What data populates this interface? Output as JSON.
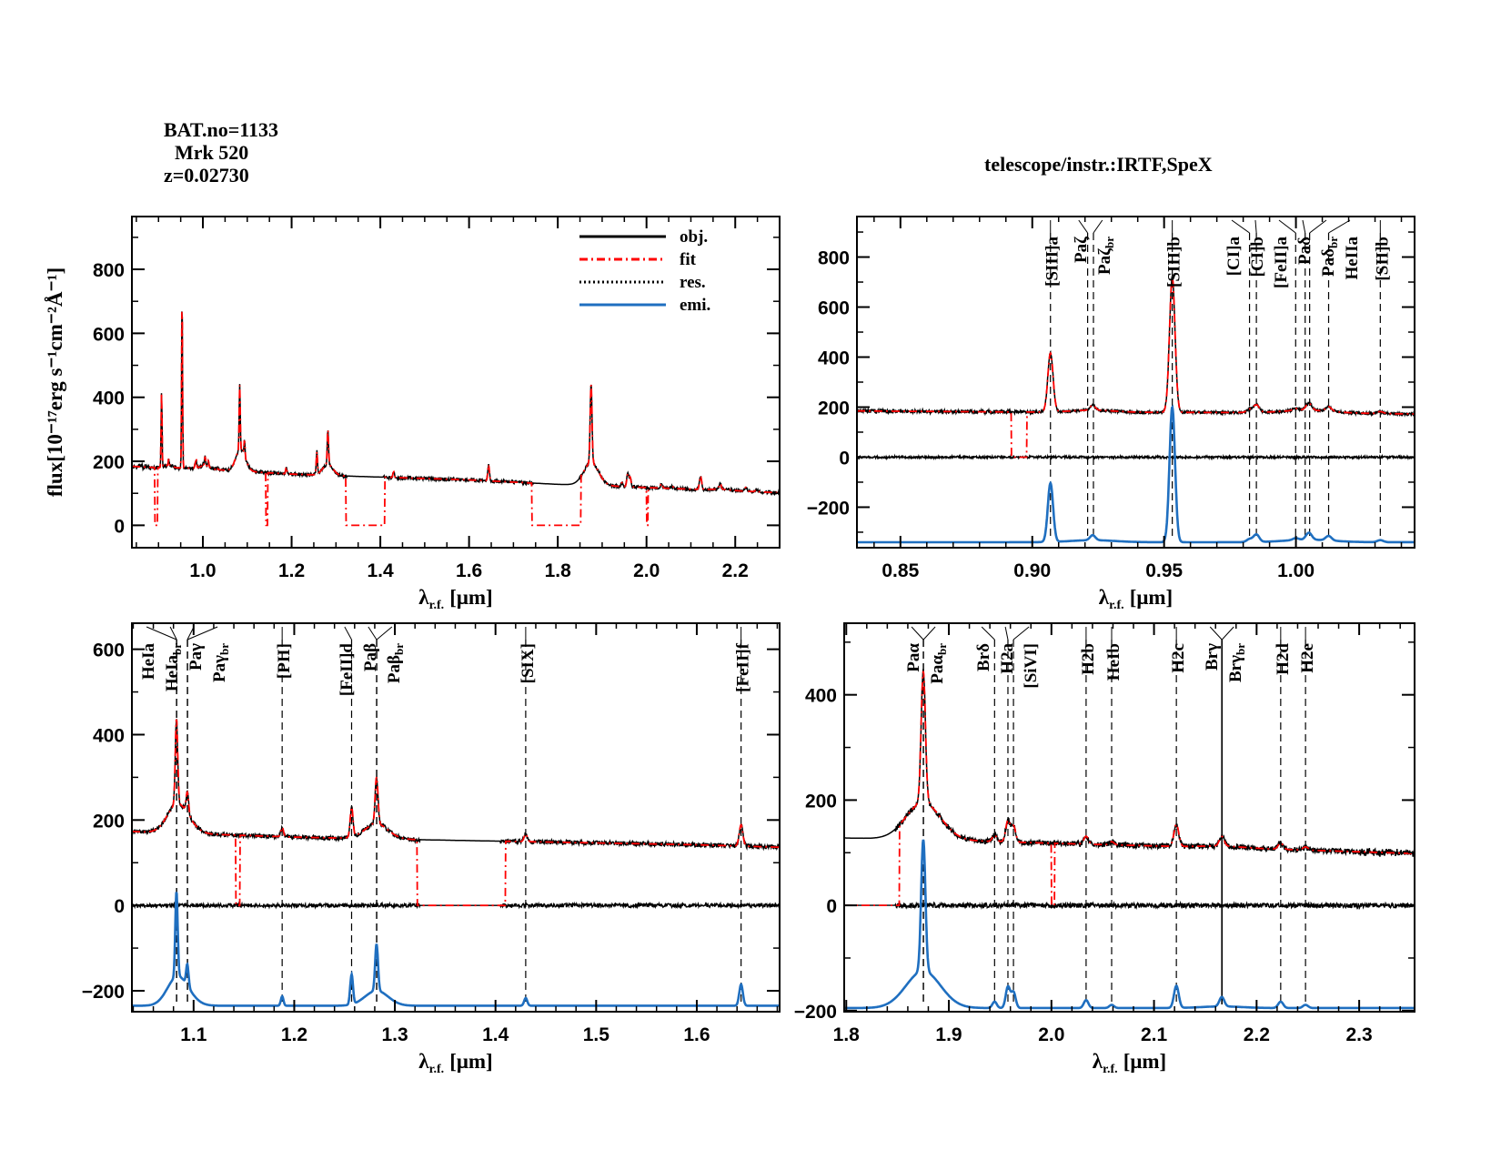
{
  "header": {
    "bat_no": "BAT.no=1133",
    "object": "Mrk 520",
    "redshift": "z=0.02730",
    "instrument": "telescope/instr.:IRTF,SpeX"
  },
  "chart_data": {
    "type": "line",
    "ylabel": "flux[10⁻¹⁷erg s⁻¹cm⁻²Å⁻¹]",
    "xlabel_main": "λ",
    "xlabel_sub": "r.f.",
    "xlabel_unit": "[μm]",
    "legend": {
      "position": "top-right",
      "entries": [
        {
          "name": "obj.",
          "color": "#000000",
          "style": "solid"
        },
        {
          "name": "fit",
          "color": "#ff0000",
          "style": "dash-dot"
        },
        {
          "name": "res.",
          "color": "#000000",
          "style": "dotted"
        },
        {
          "name": "emi.",
          "color": "#1f6fc0",
          "style": "solid"
        }
      ]
    },
    "colors": {
      "obj": "#000000",
      "fit": "#ff0000",
      "res": "#000000",
      "emi": "#1f6fc0"
    },
    "continuum": [
      [
        0.83,
        185
      ],
      [
        0.9,
        180
      ],
      [
        1.0,
        178
      ],
      [
        1.05,
        172
      ],
      [
        1.2,
        160
      ],
      [
        1.3,
        155
      ],
      [
        1.6,
        142
      ],
      [
        1.8,
        128
      ],
      [
        1.9,
        124
      ],
      [
        2.0,
        118
      ],
      [
        2.2,
        108
      ],
      [
        2.36,
        98
      ]
    ],
    "fit_masks": [
      [
        0.892,
        0.898
      ],
      [
        1.142,
        1.146
      ],
      [
        1.322,
        1.41
      ],
      [
        1.742,
        1.852
      ],
      [
        2.0,
        2.003
      ]
    ],
    "emission_lines": [
      {
        "name": "[SIII]a",
        "wl": 0.9069,
        "amp": 235,
        "broad": 0
      },
      {
        "name": "Paζ",
        "wl": 0.9229,
        "amp": 20,
        "broad": 8
      },
      {
        "name": "[SIII]b",
        "wl": 0.9531,
        "amp": 540,
        "broad": 0
      },
      {
        "name": "[CI]a",
        "wl": 0.9824,
        "amp": 12,
        "broad": 0
      },
      {
        "name": "[CI]b",
        "wl": 0.985,
        "amp": 30,
        "broad": 0
      },
      {
        "name": "[FeII]a",
        "wl": 0.9999,
        "amp": 8,
        "broad": 0
      },
      {
        "name": "Paδ",
        "wl": 1.0049,
        "amp": 28,
        "broad": 10
      },
      {
        "name": "HeIIa",
        "wl": 1.0124,
        "amp": 18,
        "broad": 0
      },
      {
        "name": "[SII]b",
        "wl": 1.032,
        "amp": 8,
        "broad": 0
      },
      {
        "name": "HeIa",
        "wl": 1.083,
        "amp": 200,
        "broad": 60
      },
      {
        "name": "Paγ",
        "wl": 1.0938,
        "amp": 50,
        "broad": 15
      },
      {
        "name": "[PII]",
        "wl": 1.188,
        "amp": 22,
        "broad": 0
      },
      {
        "name": "[FeII]d",
        "wl": 1.257,
        "amp": 70,
        "broad": 0
      },
      {
        "name": "Paβ",
        "wl": 1.2818,
        "amp": 110,
        "broad": 35
      },
      {
        "name": "[SIX]",
        "wl": 1.43,
        "amp": 18,
        "broad": 0
      },
      {
        "name": "[FeII]f",
        "wl": 1.644,
        "amp": 50,
        "broad": 0
      },
      {
        "name": "Paα",
        "wl": 1.8751,
        "amp": 250,
        "broad": 70
      },
      {
        "name": "Brδ",
        "wl": 1.9446,
        "amp": 12,
        "broad": 0
      },
      {
        "name": "H2a",
        "wl": 1.9576,
        "amp": 40,
        "broad": 0
      },
      {
        "name": "[SiVI]",
        "wl": 1.963,
        "amp": 30,
        "broad": 0
      },
      {
        "name": "H2b",
        "wl": 2.0338,
        "amp": 15,
        "broad": 0
      },
      {
        "name": "HeIb",
        "wl": 2.0587,
        "amp": 6,
        "broad": 0
      },
      {
        "name": "H2c",
        "wl": 2.1218,
        "amp": 42,
        "broad": 0
      },
      {
        "name": "Brγ",
        "wl": 2.1661,
        "amp": 18,
        "broad": 3
      },
      {
        "name": "H2d",
        "wl": 2.2235,
        "amp": 12,
        "broad": 0
      },
      {
        "name": "H2e",
        "wl": 2.2477,
        "amp": 6,
        "broad": 0
      }
    ],
    "panels": [
      {
        "id": "overview",
        "xlim": [
          0.84,
          2.3
        ],
        "ylim": [
          -70,
          965
        ],
        "xticks": [
          1.0,
          1.2,
          1.4,
          1.6,
          1.8,
          2.0,
          2.2
        ],
        "xtick_labels": [
          "1.0",
          "1.2",
          "1.4",
          "1.6",
          "1.8",
          "2.0",
          "2.2"
        ],
        "xminor": 0.05,
        "yticks": [
          0,
          200,
          400,
          600,
          800
        ],
        "ytick_labels": [
          "0",
          "200",
          "400",
          "600",
          "800"
        ],
        "yminor": 100,
        "residual": false,
        "emi_offset": null,
        "legend": true,
        "markers": []
      },
      {
        "id": "zoom-1",
        "xlim": [
          0.8335,
          1.045
        ],
        "ylim": [
          -362,
          962
        ],
        "xticks": [
          0.85,
          0.9,
          0.95,
          1.0
        ],
        "xtick_labels": [
          "0.85",
          "0.90",
          "0.95",
          "1.00"
        ],
        "xminor": 0.01,
        "yticks": [
          -200,
          0,
          200,
          400,
          600,
          800
        ],
        "ytick_labels": [
          "−200",
          "0",
          "200",
          "400",
          "600",
          "800"
        ],
        "yminor": 100,
        "residual": true,
        "emi_offset": -340,
        "legend": false,
        "markers": [
          {
            "label": "[SIII]a",
            "wl": 0.9069
          },
          {
            "label": "Paζ",
            "wl": 0.921
          },
          {
            "label": "Paζ",
            "sub": "br",
            "wl": 0.9232
          },
          {
            "label": "[SIII]b",
            "wl": 0.9531
          },
          {
            "label": "[CI]a",
            "wl": 0.9824
          },
          {
            "label": "[CI]b",
            "wl": 0.985
          },
          {
            "label": "[FeII]a",
            "wl": 0.9999
          },
          {
            "label": "Paδ",
            "wl": 1.0035
          },
          {
            "label": "Paδ",
            "sub": "br",
            "wl": 1.0052
          },
          {
            "label": "HeIIa",
            "wl": 1.0124
          },
          {
            "label": "[SII]b",
            "wl": 1.032
          }
        ]
      },
      {
        "id": "zoom-2",
        "xlim": [
          1.0387,
          1.6823
        ],
        "ylim": [
          -249,
          661
        ],
        "xticks": [
          1.1,
          1.2,
          1.3,
          1.4,
          1.5,
          1.6
        ],
        "xtick_labels": [
          "1.1",
          "1.2",
          "1.3",
          "1.4",
          "1.5",
          "1.6"
        ],
        "xminor": 0.02,
        "yticks": [
          -200,
          0,
          200,
          400,
          600
        ],
        "ytick_labels": [
          "−200",
          "0",
          "200",
          "400",
          "600"
        ],
        "yminor": 100,
        "residual": true,
        "emi_offset": -235,
        "legend": false,
        "markers": [
          {
            "label": "HeIa",
            "wl": 1.083
          },
          {
            "label": "HeIa",
            "sub": "br",
            "wl": 1.0832
          },
          {
            "label": "Paγ",
            "wl": 1.0938
          },
          {
            "label": "Paγ",
            "sub": "br",
            "wl": 1.094
          },
          {
            "label": "[PII]",
            "wl": 1.188
          },
          {
            "label": "[FeII]d",
            "wl": 1.257
          },
          {
            "label": "Paβ",
            "wl": 1.2818
          },
          {
            "label": "Paβ",
            "sub": "br",
            "wl": 1.282
          },
          {
            "label": "[SIX]",
            "wl": 1.43
          },
          {
            "label": "[FeII]f",
            "wl": 1.644
          }
        ]
      },
      {
        "id": "zoom-3",
        "xlim": [
          1.798,
          2.354
        ],
        "ylim": [
          -202,
          536
        ],
        "xticks": [
          1.8,
          1.9,
          2.0,
          2.1,
          2.2,
          2.3
        ],
        "xtick_labels": [
          "1.8",
          "1.9",
          "2.0",
          "2.1",
          "2.2",
          "2.3"
        ],
        "xminor": 0.02,
        "yticks": [
          -200,
          0,
          200,
          400
        ],
        "ytick_labels": [
          "−200",
          "0",
          "200",
          "400"
        ],
        "yminor": 100,
        "residual": true,
        "emi_offset": -195,
        "legend": false,
        "markers": [
          {
            "label": "Paα",
            "wl": 1.8751
          },
          {
            "label": "Paα",
            "sub": "br",
            "wl": 1.8753
          },
          {
            "label": "Brδ",
            "wl": 1.9446
          },
          {
            "label": "H2a",
            "wl": 1.9576
          },
          {
            "label": "[SiVI]",
            "wl": 1.963
          },
          {
            "label": "H2b",
            "wl": 2.0338
          },
          {
            "label": "HeIb",
            "wl": 2.0587
          },
          {
            "label": "H2c",
            "wl": 2.1218
          },
          {
            "label": "Brγ",
            "wl": 2.1661,
            "solid": true
          },
          {
            "label": "Brγ",
            "sub": "br",
            "wl": 2.1663,
            "solid": true
          },
          {
            "label": "H2d",
            "wl": 2.2235
          },
          {
            "label": "H2e",
            "wl": 2.2477
          }
        ]
      }
    ]
  }
}
